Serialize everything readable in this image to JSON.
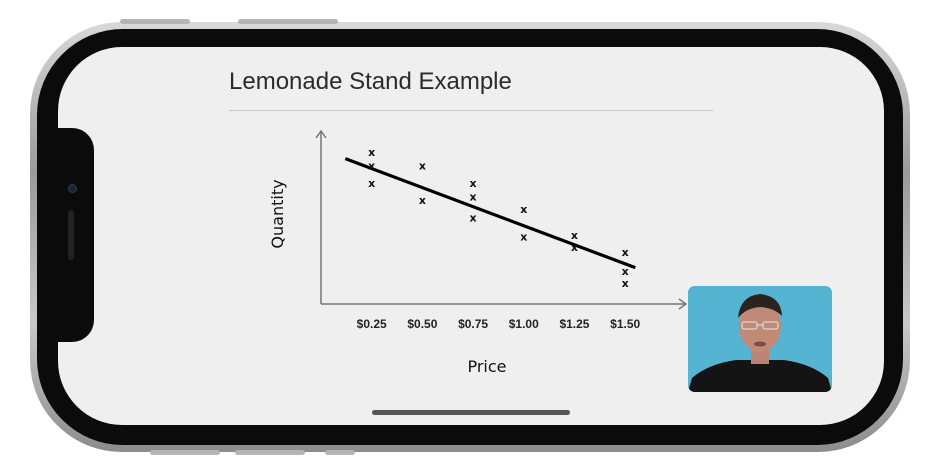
{
  "slide": {
    "title": "Lemonade Stand Example"
  },
  "video": {
    "icon": "presenter-video-icon"
  },
  "chart_data": {
    "type": "scatter",
    "title": "",
    "xlabel": "Price",
    "ylabel": "Quantity",
    "x_tick_labels": [
      "$0.25",
      "$0.50",
      "$0.75",
      "$1.00",
      "$1.25",
      "$1.50"
    ],
    "x_tick_values": [
      0.25,
      0.5,
      0.75,
      1.0,
      1.25,
      1.5
    ],
    "xlim": [
      0.0,
      1.8
    ],
    "ylim": [
      0,
      10
    ],
    "marker": "x",
    "grid": false,
    "points": [
      {
        "x": 0.25,
        "y": 8.8
      },
      {
        "x": 0.25,
        "y": 8.0
      },
      {
        "x": 0.25,
        "y": 7.0
      },
      {
        "x": 0.5,
        "y": 8.0
      },
      {
        "x": 0.5,
        "y": 6.0
      },
      {
        "x": 0.75,
        "y": 7.0
      },
      {
        "x": 0.75,
        "y": 6.2
      },
      {
        "x": 0.75,
        "y": 5.0
      },
      {
        "x": 1.0,
        "y": 5.5
      },
      {
        "x": 1.0,
        "y": 3.9
      },
      {
        "x": 1.25,
        "y": 4.0
      },
      {
        "x": 1.25,
        "y": 3.3
      },
      {
        "x": 1.5,
        "y": 3.0
      },
      {
        "x": 1.5,
        "y": 1.9
      },
      {
        "x": 1.5,
        "y": 1.2
      }
    ],
    "trendline": {
      "x": [
        0.12,
        1.55
      ],
      "y": [
        8.4,
        2.1
      ]
    }
  }
}
